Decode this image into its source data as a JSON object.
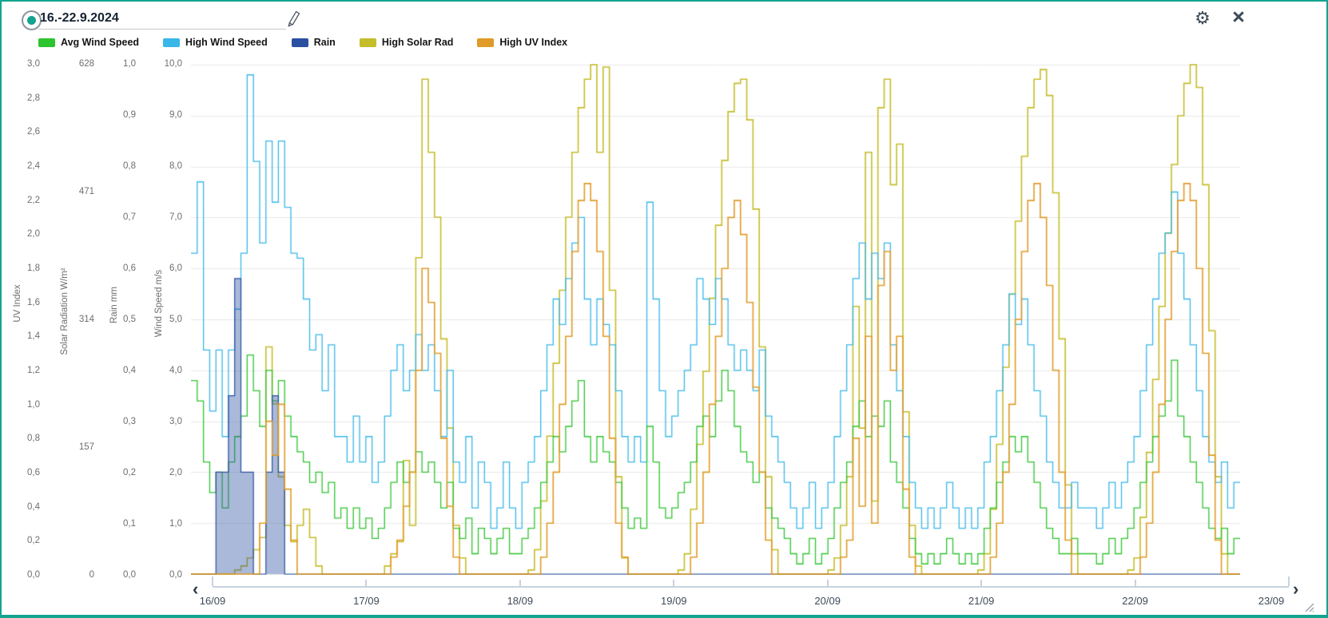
{
  "header": {
    "date_range": "16.-22.9.2024"
  },
  "icons": {
    "radio_selected": "teal-dot-in-ring",
    "edit": "pencil-outline",
    "settings": "⚙",
    "close": "×",
    "chevron_left": "‹",
    "chevron_right": "›",
    "resize_handle": "diagonal-lines"
  },
  "colors": {
    "accent_teal": "#12a48e",
    "avg_wind": "#2ec42e",
    "high_wind": "#38b7e8",
    "rain": "#2b50a1",
    "solar": "#c5bd2a",
    "uv": "#e09b28",
    "grid": "#e9e9e9",
    "axis_line": "#c7d2e0"
  },
  "legend": [
    {
      "label": "Avg Wind Speed",
      "color": "#2ec42e"
    },
    {
      "label": "High Wind Speed",
      "color": "#38b7e8"
    },
    {
      "label": "Rain",
      "color": "#2b50a1"
    },
    {
      "label": "High Solar Rad",
      "color": "#c5bd2a"
    },
    {
      "label": "High UV Index",
      "color": "#e09b28"
    }
  ],
  "axes": {
    "uv": {
      "title": "UV Index",
      "ticks": [
        "3,0",
        "2,8",
        "2,6",
        "2,4",
        "2,2",
        "2,0",
        "1,8",
        "1,6",
        "1,4",
        "1,2",
        "1,0",
        "0,8",
        "0,6",
        "0,4",
        "0,2",
        "0,0"
      ]
    },
    "solar": {
      "title": "Solar Radiation W/m²",
      "ticks": [
        "628",
        "471",
        "314",
        "157",
        "0"
      ]
    },
    "rain": {
      "title": "Rain mm",
      "ticks": [
        "1,0",
        "0,9",
        "0,8",
        "0,7",
        "0,6",
        "0,5",
        "0,4",
        "0,3",
        "0,2",
        "0,1",
        "0,0"
      ]
    },
    "wind": {
      "title": "Wind Speed m/s",
      "ticks": [
        "10,0",
        "9,0",
        "8,0",
        "7,0",
        "6,0",
        "5,0",
        "4,0",
        "3,0",
        "2,0",
        "1,0",
        "0,0"
      ]
    },
    "x": {
      "labels": [
        "16/09",
        "17/09",
        "18/09",
        "19/09",
        "20/09",
        "21/09",
        "22/09",
        "23/09"
      ]
    }
  },
  "chart_data": {
    "type": "line",
    "interpolation": "step",
    "grid": "horizontal",
    "legend_position": "top",
    "x_start": "16/09 00:00",
    "x_step_hours": 1,
    "x_range": [
      "16/09 00:00",
      "23/09 00:00"
    ],
    "series": [
      {
        "name": "Avg Wind Speed",
        "axis": "wind",
        "unit": "m/s",
        "color": "#2ec42e",
        "ylim": [
          0,
          10
        ],
        "values": [
          3.8,
          3.4,
          2.2,
          1.6,
          2.0,
          1.3,
          2.2,
          2.7,
          3.1,
          4.3,
          3.6,
          2.9,
          4.0,
          3.4,
          3.8,
          3.1,
          2.7,
          2.4,
          2.2,
          1.8,
          2.0,
          1.6,
          1.8,
          1.1,
          1.3,
          0.9,
          1.3,
          0.9,
          1.1,
          0.7,
          0.9,
          1.3,
          1.8,
          2.2,
          1.8,
          2.0,
          2.4,
          2.0,
          2.2,
          1.8,
          1.3,
          1.8,
          0.9,
          0.7,
          1.1,
          0.4,
          0.9,
          0.7,
          0.4,
          0.7,
          0.9,
          0.4,
          0.4,
          0.7,
          0.9,
          1.3,
          1.8,
          2.2,
          2.7,
          2.4,
          2.9,
          3.4,
          3.8,
          2.7,
          2.2,
          2.7,
          2.4,
          2.2,
          1.8,
          1.3,
          0.9,
          1.1,
          0.9,
          2.9,
          2.2,
          1.3,
          1.1,
          1.3,
          1.6,
          1.8,
          2.2,
          2.9,
          3.1,
          2.7,
          3.4,
          4.0,
          3.6,
          2.9,
          2.4,
          2.2,
          1.8,
          2.0,
          1.3,
          1.1,
          0.9,
          0.7,
          0.4,
          0.2,
          0.4,
          0.7,
          0.2,
          0.4,
          0.7,
          1.3,
          1.8,
          2.2,
          2.9,
          3.4,
          2.7,
          3.1,
          2.9,
          3.4,
          2.2,
          1.8,
          1.3,
          0.7,
          0.4,
          0.2,
          0.4,
          0.2,
          0.4,
          0.7,
          0.4,
          0.2,
          0.4,
          0.2,
          0.4,
          0.9,
          1.3,
          1.8,
          2.2,
          2.7,
          2.4,
          2.7,
          2.2,
          1.8,
          1.3,
          0.9,
          0.7,
          0.4,
          0.4,
          0.7,
          0.4,
          0.4,
          0.4,
          0.2,
          0.4,
          0.7,
          0.4,
          0.7,
          0.9,
          1.3,
          1.8,
          2.2,
          2.7,
          3.1,
          3.4,
          4.2,
          3.1,
          2.7,
          2.2,
          1.8,
          1.3,
          0.9,
          0.7,
          0.9,
          0.4,
          0.7
        ]
      },
      {
        "name": "High Wind Speed",
        "axis": "wind",
        "unit": "m/s",
        "color": "#38b7e8",
        "ylim": [
          0,
          10
        ],
        "values": [
          6.3,
          7.7,
          4.4,
          3.2,
          4.4,
          2.7,
          4.4,
          5.2,
          6.3,
          9.8,
          8.1,
          6.5,
          8.5,
          7.3,
          8.5,
          7.2,
          6.3,
          6.2,
          5.4,
          4.4,
          4.7,
          3.6,
          4.5,
          2.7,
          2.7,
          2.2,
          3.1,
          2.2,
          2.7,
          1.8,
          2.2,
          3.1,
          4.0,
          4.5,
          3.6,
          4.0,
          4.7,
          4.0,
          4.5,
          3.6,
          2.7,
          4.0,
          2.2,
          1.8,
          2.7,
          1.3,
          2.2,
          1.8,
          0.9,
          1.3,
          2.2,
          1.3,
          0.9,
          1.8,
          2.2,
          2.7,
          3.6,
          4.5,
          5.4,
          4.9,
          5.8,
          6.5,
          7.0,
          5.4,
          4.5,
          5.4,
          4.9,
          4.5,
          3.6,
          2.7,
          2.2,
          2.7,
          2.2,
          7.3,
          5.4,
          3.6,
          2.7,
          3.1,
          3.6,
          4.0,
          4.5,
          5.8,
          5.4,
          4.9,
          5.8,
          5.4,
          4.5,
          4.0,
          4.4,
          4.0,
          3.6,
          4.4,
          3.1,
          2.7,
          2.2,
          1.8,
          1.3,
          0.9,
          1.3,
          1.8,
          0.9,
          1.3,
          1.8,
          2.7,
          3.6,
          4.5,
          5.8,
          6.5,
          5.4,
          6.3,
          5.8,
          6.5,
          4.5,
          3.6,
          2.7,
          1.8,
          1.3,
          0.9,
          1.3,
          0.9,
          1.3,
          1.8,
          1.3,
          0.9,
          1.3,
          0.9,
          1.3,
          2.2,
          2.7,
          3.6,
          4.5,
          5.5,
          4.9,
          5.4,
          4.5,
          3.6,
          3.1,
          2.2,
          1.8,
          1.3,
          1.3,
          1.8,
          1.3,
          1.3,
          1.3,
          0.9,
          1.3,
          1.8,
          1.3,
          1.8,
          2.2,
          2.7,
          3.6,
          4.5,
          5.4,
          6.3,
          6.7,
          7.5,
          6.3,
          5.4,
          4.5,
          3.6,
          2.7,
          2.2,
          1.8,
          2.2,
          1.3,
          1.8
        ]
      },
      {
        "name": "Rain",
        "axis": "rain",
        "unit": "mm",
        "color": "#2b50a1",
        "ylim": [
          0,
          1
        ],
        "values": [
          0,
          0,
          0,
          0,
          0.2,
          0.2,
          0.35,
          0.58,
          0.2,
          0.2,
          0,
          0,
          0.2,
          0.35,
          0.2,
          0,
          0,
          0,
          0,
          0,
          0,
          0,
          0,
          0,
          0,
          0,
          0,
          0,
          0,
          0,
          0,
          0,
          0,
          0,
          0,
          0,
          0,
          0,
          0,
          0,
          0,
          0,
          0,
          0,
          0,
          0,
          0,
          0,
          0,
          0,
          0,
          0,
          0,
          0,
          0,
          0,
          0,
          0,
          0,
          0,
          0,
          0,
          0,
          0,
          0,
          0,
          0,
          0,
          0,
          0,
          0,
          0,
          0,
          0,
          0,
          0,
          0,
          0,
          0,
          0,
          0,
          0,
          0,
          0,
          0,
          0,
          0,
          0,
          0,
          0,
          0,
          0,
          0,
          0,
          0,
          0,
          0,
          0,
          0,
          0,
          0,
          0,
          0,
          0,
          0,
          0,
          0,
          0,
          0,
          0,
          0,
          0,
          0,
          0,
          0,
          0,
          0,
          0,
          0,
          0,
          0,
          0,
          0,
          0,
          0,
          0,
          0,
          0,
          0,
          0,
          0,
          0,
          0,
          0,
          0,
          0,
          0,
          0,
          0,
          0,
          0,
          0,
          0,
          0,
          0,
          0,
          0,
          0,
          0,
          0,
          0,
          0,
          0,
          0,
          0,
          0,
          0,
          0,
          0,
          0,
          0,
          0,
          0,
          0,
          0,
          0,
          0,
          0
        ]
      },
      {
        "name": "High Solar Rad",
        "axis": "solar",
        "unit": "W/m²",
        "color": "#c5bd2a",
        "ylim": [
          0,
          628
        ],
        "values": [
          0,
          0,
          0,
          0,
          0,
          0,
          0,
          5,
          10,
          20,
          30,
          45,
          280,
          210,
          120,
          60,
          40,
          60,
          80,
          45,
          10,
          0,
          0,
          0,
          0,
          0,
          0,
          0,
          0,
          0,
          0,
          10,
          25,
          40,
          140,
          60,
          390,
          610,
          520,
          440,
          290,
          180,
          60,
          20,
          0,
          0,
          0,
          0,
          0,
          0,
          0,
          0,
          0,
          0,
          5,
          30,
          90,
          170,
          260,
          350,
          440,
          520,
          575,
          610,
          628,
          520,
          625,
          350,
          120,
          20,
          0,
          0,
          0,
          0,
          0,
          0,
          0,
          0,
          5,
          25,
          80,
          160,
          250,
          340,
          430,
          510,
          570,
          605,
          610,
          560,
          450,
          280,
          120,
          30,
          0,
          0,
          0,
          0,
          0,
          0,
          0,
          0,
          5,
          20,
          60,
          120,
          330,
          180,
          520,
          90,
          575,
          610,
          480,
          530,
          200,
          60,
          10,
          0,
          0,
          0,
          0,
          0,
          0,
          0,
          0,
          0,
          5,
          25,
          80,
          160,
          255,
          345,
          435,
          515,
          575,
          610,
          622,
          590,
          470,
          290,
          110,
          25,
          0,
          0,
          0,
          0,
          0,
          0,
          0,
          0,
          5,
          20,
          70,
          150,
          240,
          330,
          420,
          505,
          565,
          605,
          628,
          600,
          480,
          300,
          120,
          25,
          0,
          0
        ]
      },
      {
        "name": "High UV Index",
        "axis": "uv",
        "unit": "index",
        "color": "#e09b28",
        "ylim": [
          0,
          3
        ],
        "values": [
          0,
          0,
          0,
          0,
          0,
          0,
          0,
          0,
          0,
          0,
          0,
          0.3,
          0.9,
          0.7,
          1.0,
          0.5,
          0.2,
          0,
          0,
          0,
          0,
          0,
          0,
          0,
          0,
          0,
          0,
          0,
          0,
          0,
          0,
          0,
          0.1,
          0.2,
          0.4,
          0.6,
          1.2,
          1.8,
          1.6,
          1.3,
          0.8,
          0.4,
          0.1,
          0,
          0,
          0,
          0,
          0,
          0,
          0,
          0,
          0,
          0,
          0,
          0,
          0,
          0.1,
          0.3,
          0.6,
          1.0,
          1.4,
          1.9,
          2.2,
          2.3,
          2.2,
          1.9,
          1.4,
          0.8,
          0.3,
          0.1,
          0,
          0,
          0,
          0,
          0,
          0,
          0,
          0,
          0,
          0,
          0.1,
          0.3,
          0.6,
          1.0,
          1.4,
          1.8,
          2.1,
          2.2,
          2.0,
          1.6,
          1.1,
          0.6,
          0.2,
          0,
          0,
          0,
          0,
          0,
          0,
          0,
          0,
          0,
          0,
          0,
          0.1,
          0.2,
          0.8,
          0.4,
          1.4,
          0.3,
          1.7,
          1.9,
          1.2,
          1.4,
          0.5,
          0.1,
          0,
          0,
          0,
          0,
          0,
          0,
          0,
          0,
          0,
          0,
          0,
          0,
          0.1,
          0.3,
          0.6,
          1.0,
          1.5,
          1.9,
          2.2,
          2.3,
          2.1,
          1.7,
          1.2,
          0.6,
          0.2,
          0,
          0,
          0,
          0,
          0,
          0,
          0,
          0,
          0,
          0,
          0,
          0.1,
          0.3,
          0.6,
          1.0,
          1.5,
          1.9,
          2.2,
          2.3,
          2.2,
          1.8,
          1.3,
          0.7,
          0.2,
          0,
          0,
          0
        ]
      }
    ]
  }
}
